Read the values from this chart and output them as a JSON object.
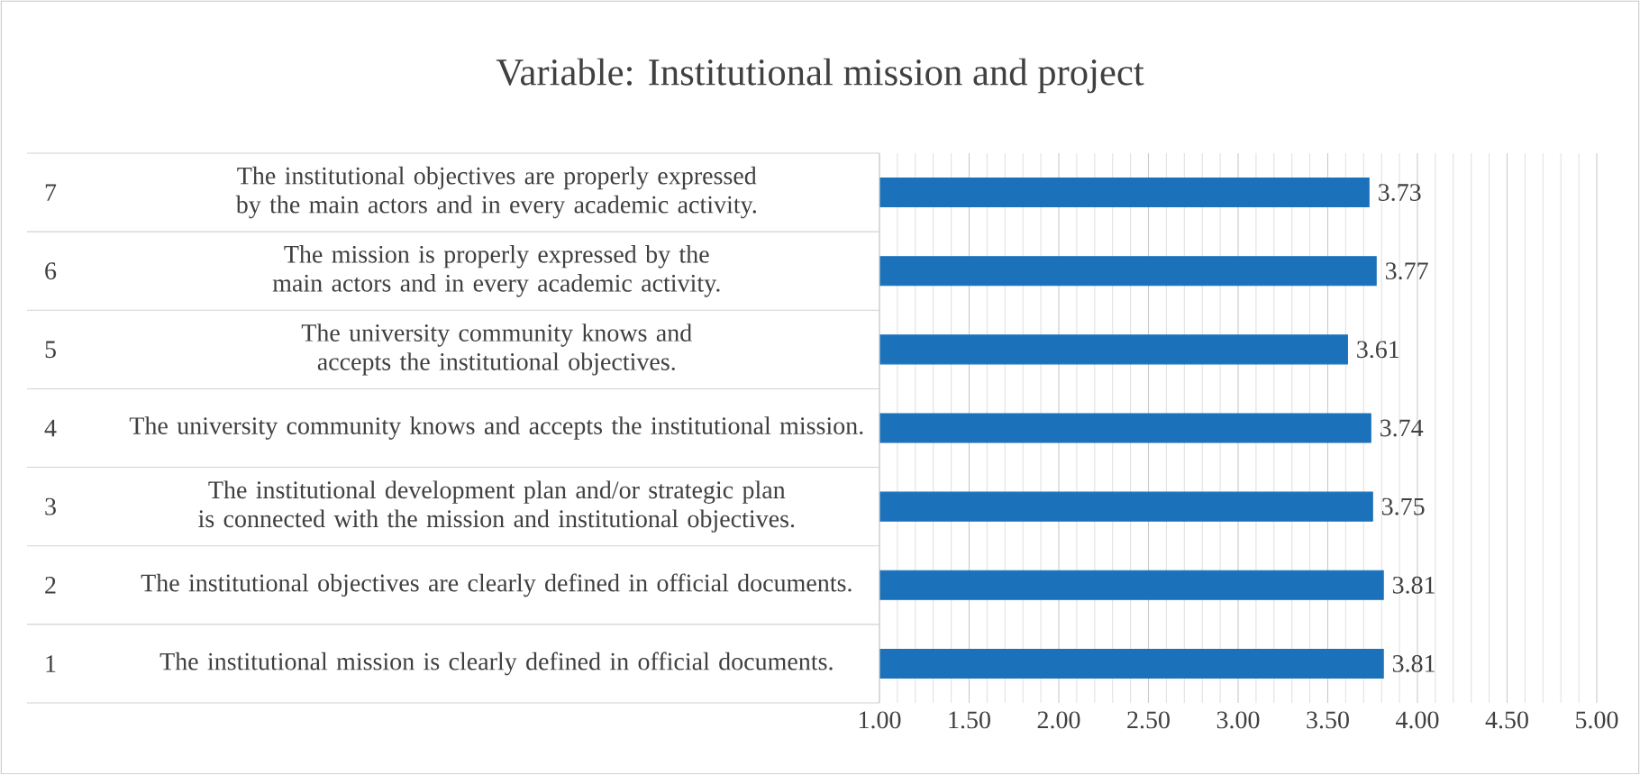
{
  "chart_data": {
    "type": "bar",
    "orientation": "horizontal",
    "title": "Variable:  Institutional  mission and project",
    "categories": [
      "The institutional objectives are properly expressed by the main actors and in every academic activity.",
      "The mission is properly expressed by the main actors and in every academic activity.",
      "The university community knows and accepts the institutional objectives.",
      "The university community knows and accepts the institutional mission.",
      "The institutional development plan and/or strategic plan is connected with the mission and institutional objectives.",
      "The institutional objectives are clearly defined in official documents.",
      "The institutional mission is clearly defined in official documents."
    ],
    "annotations": [
      "7",
      "6",
      "5",
      "4",
      "3",
      "2",
      "1"
    ],
    "values": [
      3.73,
      3.77,
      3.61,
      3.74,
      3.75,
      3.81,
      3.81
    ],
    "color": "#1b72bb",
    "data_labels": true,
    "grid": "x",
    "xlim": [
      1,
      5
    ],
    "xticks": [
      {
        "value": 1,
        "label": "1.00"
      },
      {
        "value": 1.5,
        "label": "1.50"
      },
      {
        "value": 2,
        "label": "2.00"
      },
      {
        "value": 2.5,
        "label": "2.50"
      },
      {
        "value": 3,
        "label": "3.00"
      },
      {
        "value": 3.5,
        "label": "3.50"
      },
      {
        "value": 4,
        "label": "4.00"
      },
      {
        "value": 4.5,
        "label": "4.50"
      },
      {
        "value": 5,
        "label": "5.00"
      }
    ]
  }
}
